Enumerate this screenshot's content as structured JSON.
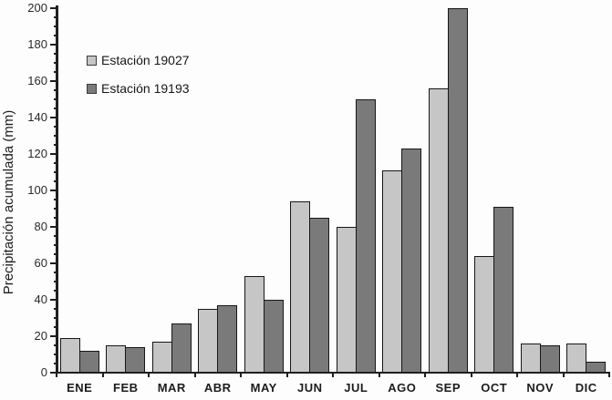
{
  "figure": {
    "background": "#fdfdfd",
    "axis_color": "#1f1f1f"
  },
  "chart_data": {
    "type": "bar",
    "title": "",
    "xlabel": "",
    "ylabel": "Precipitación acumulada (mm)",
    "categories": [
      "ENE",
      "FEB",
      "MAR",
      "ABR",
      "MAY",
      "JUN",
      "JUL",
      "AGO",
      "SEP",
      "OCT",
      "NOV",
      "DIC"
    ],
    "series": [
      {
        "name": "Estación 19027",
        "color": "#c6c6c6",
        "values": [
          19,
          15,
          17,
          35,
          53,
          94,
          80,
          111,
          156,
          64,
          16,
          16
        ]
      },
      {
        "name": "Estación 19193",
        "color": "#7a7a7a",
        "values": [
          12,
          14,
          27,
          37,
          40,
          85,
          150,
          123,
          200,
          91,
          15,
          6
        ]
      }
    ],
    "ylim": [
      0,
      200
    ],
    "ytick_step": 20,
    "minor_tick_step": 5,
    "ytick_labels": [
      "0",
      "20",
      "40",
      "60",
      "80",
      "100",
      "120",
      "140",
      "160",
      "180",
      "200"
    ],
    "grid": false,
    "legend_position": "upper-left-inside",
    "bar_border_color": "#171717"
  }
}
